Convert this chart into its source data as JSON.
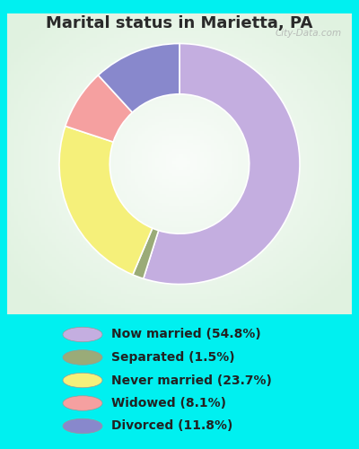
{
  "title": "Marital status in Marietta, PA",
  "slices": [
    54.8,
    1.5,
    23.7,
    8.1,
    11.8
  ],
  "colors": [
    "#c4aee0",
    "#9aab78",
    "#f5f07a",
    "#f5a0a0",
    "#8888cc"
  ],
  "labels": [
    "Now married (54.8%)",
    "Separated (1.5%)",
    "Never married (23.7%)",
    "Widowed (8.1%)",
    "Divorced (11.8%)"
  ],
  "background_cyan": "#00f0f0",
  "background_chart": "#e8f5e9",
  "watermark": "City-Data.com",
  "title_fontsize": 13,
  "legend_fontsize": 10,
  "start_angle": 90,
  "donut_width": 0.42
}
